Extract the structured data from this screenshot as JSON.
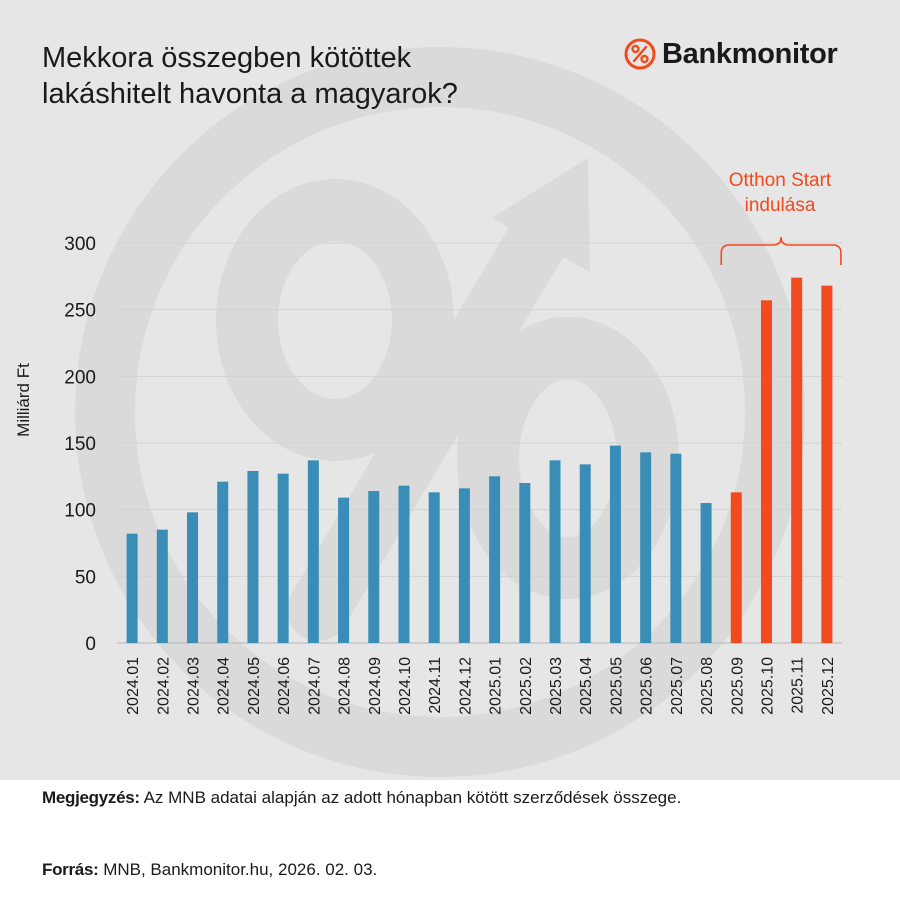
{
  "header": {
    "title_line1": "Mekkora összegben kötöttek",
    "title_line2": "lakáshitelt havonta a magyarok?",
    "brand_name": "Bankmonitor",
    "brand_icon": "percent-icon",
    "brand_color": "#f04a1e"
  },
  "annotation": {
    "line1": "Otthon Start",
    "line2": "indulása"
  },
  "footer": {
    "note_label": "Megjegyzés:",
    "note_text": " Az MNB adatai alapján az adott hónapban kötött szerződések összege.",
    "source_label": "Forrás:",
    "source_text": " MNB, Bankmonitor.hu, 2026. 02. 03."
  },
  "colors": {
    "bar_default": "#3a8db7",
    "bar_highlight": "#f04a1e",
    "background": "#e6e6e6"
  },
  "chart_data": {
    "type": "bar",
    "title": "Mekkora összegben kötöttek lakáshitelt havonta a magyarok?",
    "xlabel": "",
    "ylabel": "Milliárd Ft",
    "ylim": [
      0,
      300
    ],
    "yticks": [
      0,
      50,
      100,
      150,
      200,
      250,
      300
    ],
    "grid": true,
    "categories": [
      "2024.01",
      "2024.02",
      "2024.03",
      "2024.04",
      "2024.05",
      "2024.06",
      "2024.07",
      "2024.08",
      "2024.09",
      "2024.10",
      "2024.11",
      "2024.12",
      "2025.01",
      "2025.02",
      "2025.03",
      "2025.04",
      "2025.05",
      "2025.06",
      "2025.07",
      "2025.08",
      "2025.09",
      "2025.10",
      "2025.11",
      "2025.12"
    ],
    "values": [
      82,
      85,
      98,
      121,
      129,
      127,
      137,
      109,
      114,
      118,
      113,
      116,
      125,
      120,
      137,
      134,
      148,
      143,
      142,
      105,
      113,
      257,
      274,
      268
    ],
    "highlight_categories": [
      "2025.09",
      "2025.10",
      "2025.11",
      "2025.12"
    ],
    "annotation": {
      "text": "Otthon Start indulása",
      "span_categories": [
        "2025.09",
        "2025.12"
      ]
    }
  }
}
